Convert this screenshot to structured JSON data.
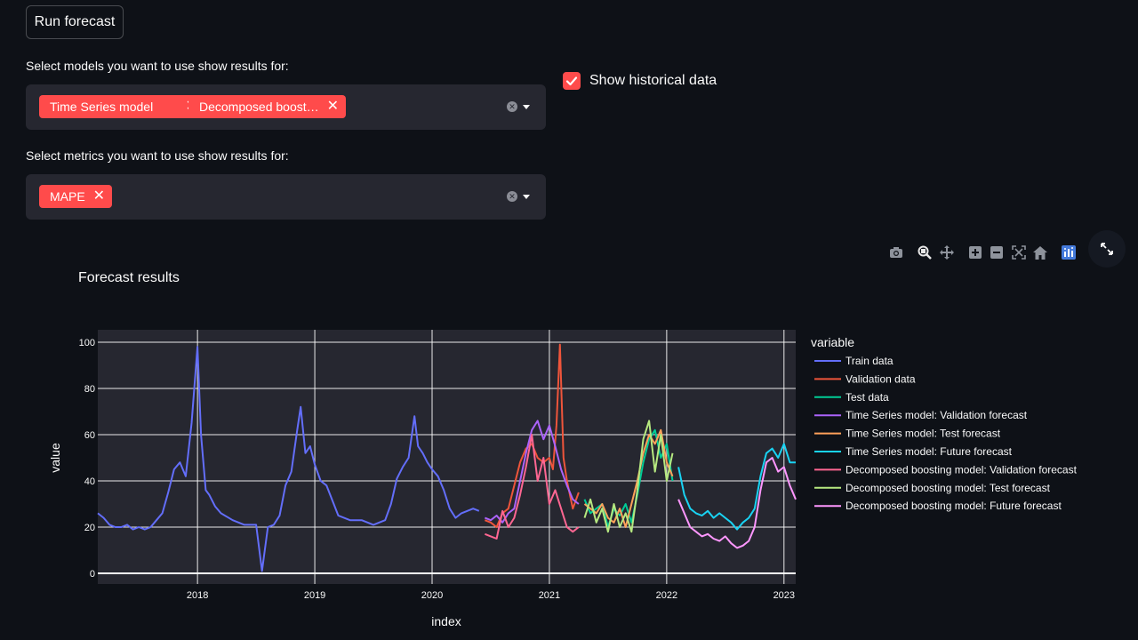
{
  "run_button": {
    "label": "Run forecast"
  },
  "models_select": {
    "label": "Select models you want to use show results for:",
    "chips": [
      "Time Series model",
      "Decomposed boost…"
    ]
  },
  "metrics_select": {
    "label": "Select metrics you want to use show results for:",
    "chips": [
      "MAPE"
    ]
  },
  "historical_checkbox": {
    "label": "Show historical data",
    "checked": true
  },
  "modebar_icons": [
    "camera-icon",
    "zoom-icon",
    "pan-icon",
    "zoom-in-icon",
    "zoom-out-icon",
    "autoscale-icon",
    "home-icon",
    "plotly-logo-icon"
  ],
  "colors": {
    "accent": "#ff4b4b",
    "background": "#0e1117",
    "plot_bg": "#262730"
  },
  "chart_data": {
    "type": "line",
    "title": "Forecast results",
    "xlabel": "index",
    "ylabel": "value",
    "ylim": [
      0,
      100
    ],
    "xlim": [
      2017.15,
      2023.1
    ],
    "x_ticks": [
      "2018",
      "2019",
      "2020",
      "2021",
      "2022",
      "2023"
    ],
    "y_ticks": [
      0,
      20,
      40,
      60,
      80,
      100
    ],
    "grid": true,
    "legend_title": "variable",
    "legend_position": "right",
    "series": [
      {
        "name": "Train data",
        "color": "#636efa",
        "x": [
          2017.15,
          2017.2,
          2017.25,
          2017.3,
          2017.35,
          2017.4,
          2017.45,
          2017.5,
          2017.55,
          2017.6,
          2017.65,
          2017.7,
          2017.75,
          2017.8,
          2017.85,
          2017.9,
          2017.95,
          2018.0,
          2018.03,
          2018.07,
          2018.1,
          2018.15,
          2018.2,
          2018.3,
          2018.4,
          2018.5,
          2018.55,
          2018.6,
          2018.65,
          2018.7,
          2018.75,
          2018.8,
          2018.85,
          2018.88,
          2018.92,
          2018.96,
          2019.0,
          2019.05,
          2019.1,
          2019.2,
          2019.3,
          2019.4,
          2019.5,
          2019.55,
          2019.6,
          2019.65,
          2019.7,
          2019.75,
          2019.8,
          2019.85,
          2019.88,
          2019.92,
          2019.96,
          2020.0,
          2020.05,
          2020.1,
          2020.15,
          2020.2,
          2020.25,
          2020.3,
          2020.35,
          2020.4
        ],
        "y": [
          26,
          24,
          21,
          20,
          20,
          21,
          19,
          20,
          19,
          20,
          23,
          26,
          35,
          45,
          48,
          42,
          65,
          98,
          60,
          36,
          34,
          29,
          26,
          23,
          21,
          21,
          1,
          20,
          21,
          25,
          38,
          44,
          62,
          72,
          52,
          55,
          47,
          40,
          38,
          25,
          23,
          23,
          21,
          22,
          23,
          30,
          41,
          46,
          50,
          68,
          55,
          52,
          48,
          45,
          42,
          36,
          28,
          24,
          26,
          27,
          28,
          27
        ]
      },
      {
        "name": "Validation data",
        "color": "#ef553b",
        "x": [
          2020.45,
          2020.5,
          2020.55,
          2020.6,
          2020.65,
          2020.7,
          2020.75,
          2020.8,
          2020.85,
          2020.9,
          2020.95,
          2021.0,
          2021.03,
          2021.06,
          2021.09,
          2021.12,
          2021.15,
          2021.2,
          2021.25
        ],
        "y": [
          23,
          22,
          20,
          26,
          28,
          38,
          48,
          54,
          56,
          50,
          48,
          50,
          45,
          64,
          99,
          50,
          40,
          28,
          35
        ]
      },
      {
        "name": "Test data",
        "color": "#00cc96",
        "x": [
          2021.3,
          2021.35,
          2021.4,
          2021.45,
          2021.5,
          2021.55,
          2021.6,
          2021.65,
          2021.7,
          2021.75,
          2021.8,
          2021.85,
          2021.9,
          2021.95,
          2022.0,
          2022.05
        ],
        "y": [
          32,
          26,
          28,
          30,
          20,
          28,
          25,
          30,
          22,
          34,
          48,
          58,
          62,
          50,
          56,
          40
        ]
      },
      {
        "name": "Time Series model: Validation forecast",
        "color": "#ab63fa",
        "x": [
          2020.45,
          2020.5,
          2020.55,
          2020.6,
          2020.65,
          2020.7,
          2020.75,
          2020.8,
          2020.85,
          2020.9,
          2020.95,
          2021.0,
          2021.05,
          2021.1,
          2021.15,
          2021.2,
          2021.25
        ],
        "y": [
          24,
          23,
          25,
          22,
          26,
          28,
          40,
          52,
          62,
          66,
          58,
          64,
          55,
          45,
          38,
          32,
          30
        ]
      },
      {
        "name": "Time Series model: Test forecast",
        "color": "#ffa15a",
        "x": [
          2021.3,
          2021.35,
          2021.4,
          2021.45,
          2021.5,
          2021.55,
          2021.6,
          2021.65,
          2021.7,
          2021.75,
          2021.8,
          2021.85,
          2021.9,
          2021.95,
          2022.0,
          2022.05
        ],
        "y": [
          30,
          28,
          26,
          30,
          24,
          22,
          28,
          20,
          30,
          40,
          52,
          60,
          56,
          62,
          48,
          42
        ]
      },
      {
        "name": "Time Series model: Future forecast",
        "color": "#19d3f3",
        "x": [
          2022.1,
          2022.15,
          2022.2,
          2022.25,
          2022.3,
          2022.35,
          2022.4,
          2022.45,
          2022.5,
          2022.55,
          2022.6,
          2022.65,
          2022.7,
          2022.75,
          2022.8,
          2022.85,
          2022.9,
          2022.95,
          2023.0,
          2023.05,
          2023.1
        ],
        "y": [
          46,
          34,
          28,
          26,
          25,
          27,
          24,
          26,
          24,
          22,
          19,
          22,
          24,
          28,
          42,
          52,
          54,
          50,
          56,
          48,
          48
        ]
      },
      {
        "name": "Decomposed boosting model: Validation forecast",
        "color": "#ff6692",
        "x": [
          2020.45,
          2020.5,
          2020.55,
          2020.6,
          2020.65,
          2020.7,
          2020.75,
          2020.8,
          2020.85,
          2020.9,
          2020.95,
          2021.0,
          2021.05,
          2021.1,
          2021.15,
          2021.2,
          2021.25
        ],
        "y": [
          17,
          16,
          15,
          27,
          20,
          24,
          34,
          46,
          60,
          40,
          50,
          30,
          36,
          28,
          20,
          18,
          20
        ]
      },
      {
        "name": "Decomposed boosting model: Test forecast",
        "color": "#b6e880",
        "x": [
          2021.3,
          2021.35,
          2021.4,
          2021.45,
          2021.5,
          2021.55,
          2021.6,
          2021.65,
          2021.7,
          2021.75,
          2021.8,
          2021.85,
          2021.9,
          2021.95,
          2022.0,
          2022.05
        ],
        "y": [
          24,
          32,
          22,
          28,
          18,
          30,
          20,
          26,
          18,
          36,
          58,
          66,
          44,
          60,
          40,
          52
        ]
      },
      {
        "name": "Decomposed boosting model: Future forecast",
        "color": "#ff97ff",
        "x": [
          2022.1,
          2022.15,
          2022.2,
          2022.25,
          2022.3,
          2022.35,
          2022.4,
          2022.45,
          2022.5,
          2022.55,
          2022.6,
          2022.65,
          2022.7,
          2022.75,
          2022.8,
          2022.85,
          2022.9,
          2022.95,
          2023.0,
          2023.05,
          2023.1
        ],
        "y": [
          32,
          26,
          20,
          18,
          16,
          17,
          15,
          14,
          16,
          13,
          11,
          12,
          14,
          20,
          36,
          48,
          50,
          44,
          46,
          38,
          32
        ]
      }
    ]
  }
}
